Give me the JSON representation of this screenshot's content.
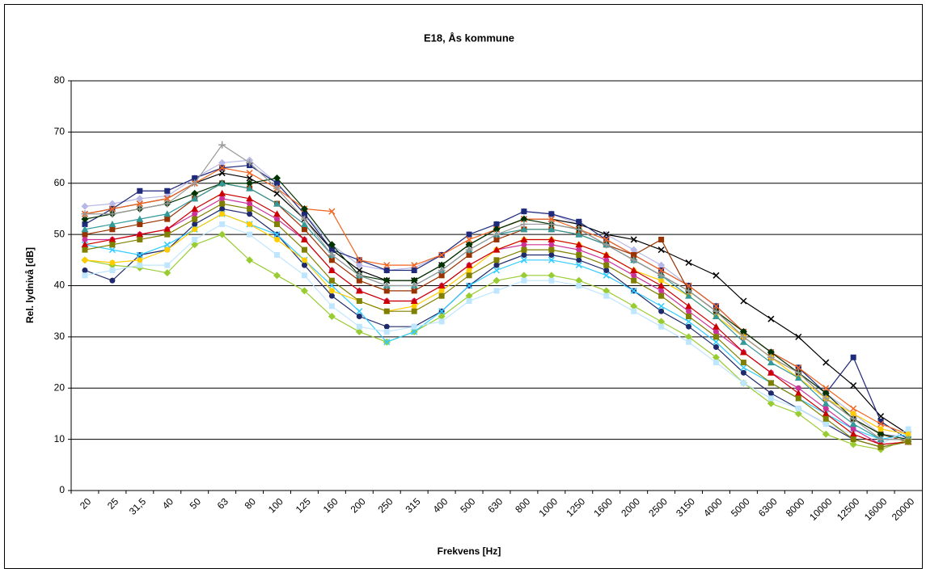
{
  "chart_data": {
    "type": "line",
    "title": "E18, Ås kommune",
    "x_label": "Frekvens [Hz]",
    "y_label": "Rel. lydnivå [dB]",
    "categories": [
      "20",
      "25",
      "31,5",
      "40",
      "50",
      "63",
      "80",
      "100",
      "125",
      "160",
      "200",
      "250",
      "315",
      "400",
      "500",
      "630",
      "800",
      "1000",
      "1250",
      "1600",
      "2000",
      "2500",
      "3150",
      "4000",
      "5000",
      "6300",
      "8000",
      "10000",
      "12500",
      "16000",
      "20000"
    ],
    "ylim": [
      0,
      80
    ],
    "yticks": [
      0,
      10,
      20,
      30,
      40,
      50,
      60,
      70,
      80
    ],
    "grid": true,
    "series": [
      {
        "color": "#b8b8e8",
        "marker": "diamond",
        "values": [
          55.5,
          56,
          57,
          57.5,
          61,
          64,
          64.5,
          60,
          54,
          48,
          44,
          43,
          43.5,
          46,
          50,
          52,
          54.5,
          54,
          52,
          50,
          47,
          44,
          40,
          36,
          31,
          27,
          24,
          19,
          15,
          11,
          10.5
        ]
      },
      {
        "color": "#000000",
        "marker": "x",
        "values": [
          54,
          55,
          56,
          57,
          60,
          62,
          61,
          58,
          53,
          47,
          43,
          41,
          41,
          44,
          48,
          51,
          53,
          53,
          52,
          50,
          49,
          47,
          44.5,
          42,
          37,
          33.5,
          30,
          25,
          20.5,
          14.5,
          11
        ]
      },
      {
        "color": "#1f2a7a",
        "marker": "square",
        "values": [
          52,
          55,
          58.5,
          58.5,
          61,
          63,
          63.5,
          60,
          54,
          47,
          45,
          43,
          43,
          46,
          50,
          52,
          54.5,
          54,
          52.5,
          49,
          46,
          43,
          40,
          36,
          31,
          27,
          24,
          19,
          26,
          13.5,
          10
        ]
      },
      {
        "color": "#f26522",
        "marker": "x",
        "values": [
          54,
          55,
          56,
          57,
          60,
          63,
          62,
          59,
          55,
          54.5,
          45,
          44,
          44,
          46,
          49,
          51,
          53,
          53,
          51,
          49,
          46,
          43,
          40,
          36,
          31,
          27,
          24,
          20,
          16,
          13,
          11
        ]
      },
      {
        "color": "#993300",
        "marker": "square",
        "values": [
          50,
          51,
          52,
          53,
          57,
          60,
          59,
          56,
          51,
          45,
          41,
          39,
          39,
          42,
          46,
          49,
          51,
          51,
          50,
          48,
          46,
          49,
          39,
          35,
          30,
          26,
          23,
          18,
          14,
          11,
          9.5
        ]
      },
      {
        "color": "#003300",
        "marker": "diamond",
        "values": [
          53,
          54,
          55,
          56,
          58,
          60,
          60,
          61,
          55,
          48,
          42,
          41,
          41,
          44,
          48,
          51,
          53,
          52,
          51,
          48,
          45,
          42,
          39,
          35,
          31,
          27,
          23,
          19,
          14,
          11,
          10
        ]
      },
      {
        "color": "#1f2a6b",
        "marker": "circle",
        "values": [
          43,
          41,
          46,
          47,
          52,
          55,
          54,
          50,
          44,
          38,
          34,
          32,
          32,
          35,
          40,
          44,
          46,
          46,
          45,
          43,
          39,
          35,
          32,
          28,
          23,
          19,
          16,
          13,
          10,
          8.5,
          9.5
        ]
      },
      {
        "color": "#99cc33",
        "marker": "diamond",
        "values": [
          45,
          44,
          43.5,
          42.5,
          48,
          50,
          45,
          42,
          39,
          34,
          31,
          29,
          31,
          34,
          38,
          41,
          42,
          42,
          41,
          39,
          36,
          33,
          30,
          26,
          21,
          17,
          15,
          11,
          9,
          8,
          10
        ]
      },
      {
        "color": "#33ccff",
        "marker": "x",
        "values": [
          48,
          47,
          46,
          48,
          51,
          54,
          52,
          50,
          45,
          40,
          35,
          29,
          31,
          35,
          40,
          43,
          45,
          45,
          44,
          42,
          39,
          36,
          33,
          29,
          24,
          21,
          18,
          15,
          12,
          10,
          11
        ]
      },
      {
        "color": "#bfe6ff",
        "marker": "square",
        "values": [
          42,
          43,
          44,
          44,
          49,
          52,
          50,
          46,
          42,
          36,
          32,
          31,
          32,
          33,
          37,
          39,
          41,
          41,
          40,
          38,
          35,
          32,
          29,
          25,
          21,
          18,
          16,
          13,
          11,
          9,
          12
        ]
      },
      {
        "color": "#cc3399",
        "marker": "circle",
        "values": [
          49,
          49,
          50,
          51,
          54,
          57,
          56,
          53,
          49,
          43,
          39,
          37,
          37,
          40,
          44,
          47,
          48,
          48,
          47,
          45,
          42,
          39,
          35,
          31,
          27,
          23,
          20,
          16,
          12,
          9,
          9.5
        ]
      },
      {
        "color": "#ffcc00",
        "marker": "circle",
        "values": [
          45,
          44.5,
          45,
          47,
          51,
          54,
          52,
          49,
          45,
          39,
          37,
          35,
          36,
          39,
          43,
          47,
          49,
          49,
          48,
          46,
          43,
          41,
          38,
          34,
          30,
          26,
          22,
          18,
          15,
          12,
          11
        ]
      },
      {
        "color": "#339999",
        "marker": "triangle",
        "values": [
          51,
          52,
          53,
          54,
          57,
          60,
          59,
          56,
          52,
          46,
          42,
          40,
          40,
          43,
          47,
          50,
          51,
          51,
          50,
          48,
          45,
          42,
          38,
          34,
          29,
          25,
          22,
          17,
          13,
          10,
          10
        ]
      },
      {
        "color": "#cc0000",
        "marker": "triangle",
        "values": [
          48,
          49,
          50,
          51,
          55,
          58,
          57,
          54,
          49,
          43,
          39,
          37,
          37,
          40,
          44,
          47,
          49,
          49,
          48,
          46,
          43,
          40,
          36,
          32,
          27,
          23,
          19,
          15,
          11,
          9,
          9.5
        ]
      },
      {
        "color": "#999999",
        "marker": "plus",
        "values": [
          54,
          54,
          55,
          56,
          60,
          67.5,
          64,
          59,
          53,
          46,
          42,
          40,
          40,
          43,
          47,
          50,
          52,
          52,
          51,
          48,
          45,
          42,
          39,
          35,
          30,
          26,
          23,
          18,
          14,
          10,
          10
        ]
      },
      {
        "color": "#808000",
        "marker": "square",
        "values": [
          47,
          48,
          49,
          50,
          53,
          56,
          55,
          52,
          47,
          41,
          37,
          35,
          35,
          38,
          42,
          45,
          47,
          47,
          46,
          44,
          41,
          38,
          34,
          30,
          25,
          21,
          18,
          14,
          10,
          8.5,
          9.5
        ]
      }
    ]
  }
}
